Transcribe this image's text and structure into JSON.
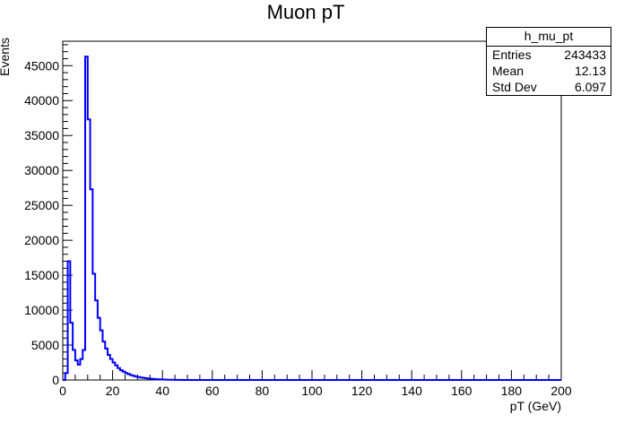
{
  "chart_data": {
    "type": "histogram",
    "title": "Muon pT",
    "xlabel": "pT (GeV)",
    "ylabel": "Events",
    "xlim": [
      0,
      200
    ],
    "ylim": [
      0,
      48500
    ],
    "x_ticks": [
      0,
      20,
      40,
      60,
      80,
      100,
      120,
      140,
      160,
      180,
      200
    ],
    "y_ticks": [
      0,
      5000,
      10000,
      15000,
      20000,
      25000,
      30000,
      35000,
      40000,
      45000
    ],
    "grid": false,
    "line_color": "#0000ff",
    "bin_width": 1,
    "bins_x_start": 0,
    "values": [
      0,
      1000,
      17000,
      8200,
      4300,
      2800,
      2200,
      3000,
      4300,
      46300,
      37300,
      27300,
      15200,
      11400,
      8900,
      7100,
      5500,
      4500,
      3600,
      3000,
      2500,
      2100,
      1700,
      1400,
      1200,
      1000,
      850,
      700,
      600,
      500,
      420,
      360,
      300,
      250,
      210,
      180,
      150,
      120,
      100,
      80,
      60,
      50,
      40,
      30,
      25,
      20,
      15,
      10,
      8,
      6,
      5,
      4,
      3,
      2,
      2,
      1
    ],
    "stats": {
      "name": "h_mu_pt",
      "rows": [
        {
          "label": "Entries",
          "value": "243433"
        },
        {
          "label": "Mean",
          "value": "12.13"
        },
        {
          "label": "Std Dev",
          "value": "6.097"
        }
      ]
    }
  }
}
